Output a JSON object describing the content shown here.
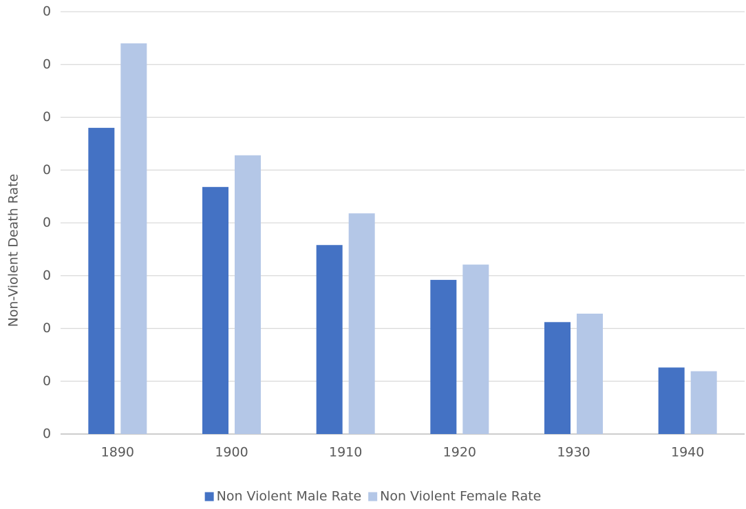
{
  "chart_data": {
    "type": "bar",
    "y_label": "Non-Violent Death Rate",
    "categories": [
      "1890",
      "1900",
      "1910",
      "1920",
      "1930",
      "1940"
    ],
    "series": [
      {
        "name": "Non Violent Male Rate",
        "color": "#4472c4",
        "values": [
          0.0058,
          0.00468,
          0.00358,
          0.00292,
          0.00212,
          0.00126
        ]
      },
      {
        "name": "Non Violent Female Rate",
        "color": "#b4c7e7",
        "values": [
          0.0074,
          0.00528,
          0.00418,
          0.00321,
          0.00228,
          0.00119
        ]
      }
    ],
    "ylim": [
      0,
      0.008
    ],
    "yticks": [
      0,
      {
        "value": 0.001,
        "label": "0"
      },
      {
        "value": 0.002,
        "label": "0"
      },
      {
        "value": 0.003,
        "label": "0"
      },
      {
        "value": 0.004,
        "label": "0"
      },
      {
        "value": 0.005,
        "label": "0"
      },
      {
        "value": 0.006,
        "label": "0"
      },
      {
        "value": 0.007,
        "label": "0"
      },
      {
        "value": 0.008,
        "label": "0"
      }
    ],
    "grid": true,
    "legend": "bottom"
  }
}
